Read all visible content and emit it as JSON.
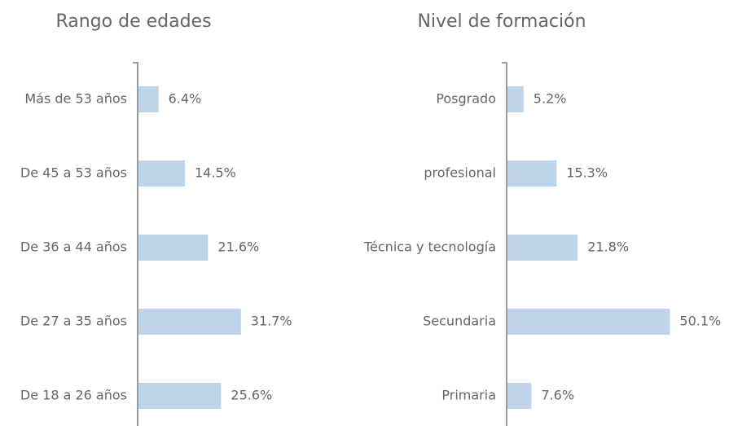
{
  "chart_data": [
    {
      "type": "bar",
      "orientation": "horizontal",
      "title": "Rango de edades",
      "categories": [
        "Más de 53 años",
        "De 45 a 53 años",
        "De 36 a 44 años",
        "De 27 a 35 años",
        "De 18 a 26 años"
      ],
      "values": [
        6.4,
        14.5,
        21.6,
        31.7,
        25.6
      ],
      "value_labels": [
        "6.4%",
        "14.5%",
        "21.6%",
        "31.7%",
        "25.6%"
      ],
      "color": "#bed5e9",
      "xlim": [
        0,
        100
      ]
    },
    {
      "type": "bar",
      "orientation": "horizontal",
      "title": "Nivel de formación",
      "categories": [
        "Posgrado",
        "profesional",
        "Técnica y tecnología",
        "Secundaria",
        "Primaria"
      ],
      "values": [
        5.2,
        15.3,
        21.8,
        50.1,
        7.6
      ],
      "value_labels": [
        "5.2%",
        "15.3%",
        "21.8%",
        "50.1%",
        "7.6%"
      ],
      "color": "#bed5e9",
      "xlim": [
        0,
        100
      ]
    }
  ]
}
